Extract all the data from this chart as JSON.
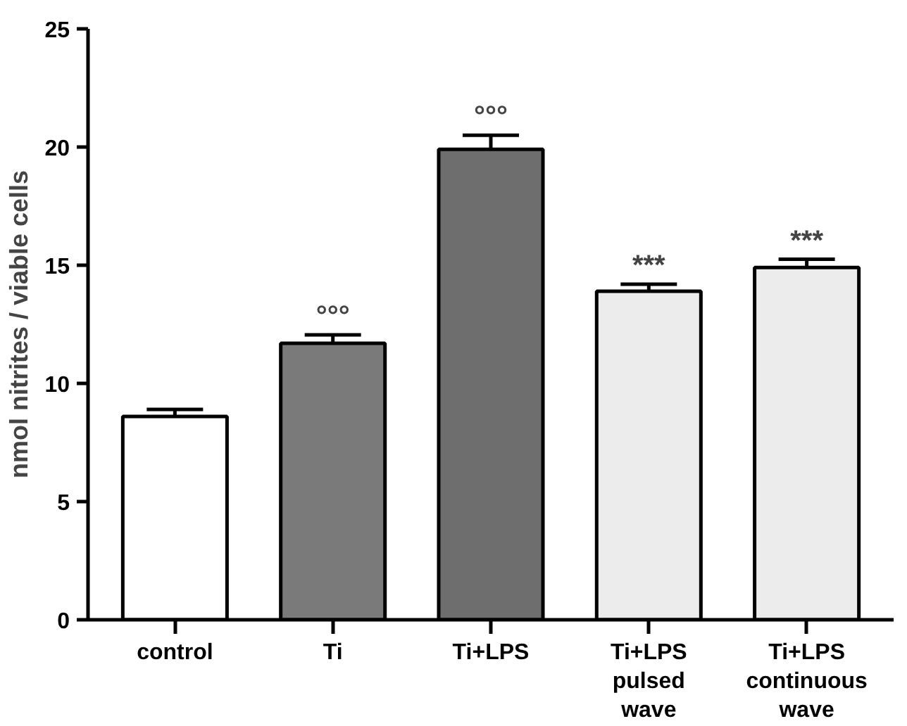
{
  "chart_data": {
    "type": "bar",
    "ylabel": "nmol nitrites / viable cells",
    "categories": [
      "control",
      "Ti",
      "Ti+LPS",
      "Ti+LPS\npulsed\nwave",
      "Ti+LPS\ncontinuous\nwave"
    ],
    "values": [
      8.6,
      11.7,
      19.9,
      13.9,
      14.9
    ],
    "errors": [
      0.3,
      0.35,
      0.6,
      0.3,
      0.35
    ],
    "colors": [
      "#ffffff",
      "#7a7a7a",
      "#6e6e6e",
      "#ececec",
      "#ececec"
    ],
    "ylim": [
      0,
      25
    ],
    "yticks": [
      0,
      5,
      10,
      15,
      20,
      25
    ],
    "grid": false,
    "annotations": [
      {
        "text": "°°°",
        "x": "Ti",
        "y": 12.05
      },
      {
        "text": "°°°",
        "x": "Ti+LPS",
        "y": 20.5
      },
      {
        "text": "***",
        "x": "Ti+LPS\npulsed\nwave",
        "y": 14.2
      },
      {
        "text": "***",
        "x": "Ti+LPS\ncontinuous\nwave",
        "y": 15.25
      }
    ]
  }
}
